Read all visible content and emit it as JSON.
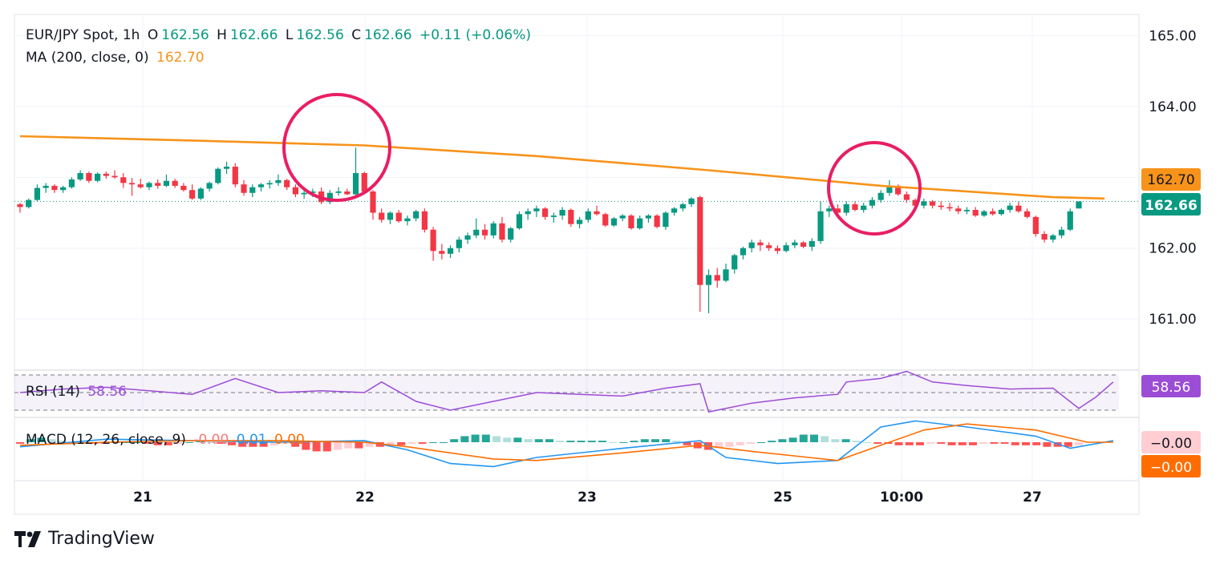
{
  "header": {
    "symbol": "EUR/JPY Spot, 1h",
    "open_label": "O",
    "open": "162.56",
    "high_label": "H",
    "high": "162.66",
    "low_label": "L",
    "low": "162.56",
    "close_label": "C",
    "close": "162.66",
    "change": "+0.11 (+0.06%)",
    "ma_label": "MA (200, close, 0)",
    "ma_value": "162.70"
  },
  "rsi": {
    "label": "RSI (14)",
    "value": "58.56",
    "badge": "58.56"
  },
  "macd": {
    "label": "MACD (12, 26, close, 9)",
    "hist": "-0.00",
    "macd": "0.01",
    "signal": "0.00",
    "badge_top": "−0.00",
    "badge_bottom": "−0.00"
  },
  "brand": {
    "name": "TradingView"
  },
  "colors": {
    "up": "#089981",
    "down": "#f23645",
    "ma": "#f7931a",
    "rsi": "#9c4dd6",
    "macd": "#2196f3",
    "signal": "#ff6d00",
    "circle": "#e91e63"
  },
  "chart_data": {
    "type": "candlestick",
    "title": "EUR/JPY Spot, 1h",
    "ylim": [
      160.3,
      165.3
    ],
    "y_ticks": [
      "165.00",
      "164.00",
      "162.00",
      "161.00"
    ],
    "x_ticks": [
      "21",
      "22",
      "23",
      "25",
      "10:00",
      "27"
    ],
    "price_badges": {
      "ma": "162.70",
      "last": "162.66"
    },
    "candles": [
      [
        162.62,
        162.64,
        162.5,
        162.58
      ],
      [
        162.58,
        162.7,
        162.56,
        162.68
      ],
      [
        162.68,
        162.9,
        162.66,
        162.85
      ],
      [
        162.85,
        162.92,
        162.78,
        162.88
      ],
      [
        162.88,
        162.9,
        162.78,
        162.82
      ],
      [
        162.82,
        162.88,
        162.78,
        162.86
      ],
      [
        162.86,
        163.0,
        162.84,
        162.97
      ],
      [
        162.97,
        163.1,
        162.95,
        163.06
      ],
      [
        163.06,
        163.08,
        162.92,
        162.95
      ],
      [
        162.95,
        163.07,
        162.93,
        163.05
      ],
      [
        163.05,
        163.08,
        162.98,
        163.02
      ],
      [
        163.02,
        163.1,
        162.98,
        163.0
      ],
      [
        163.0,
        163.06,
        162.85,
        162.92
      ],
      [
        162.92,
        162.99,
        162.74,
        162.9
      ],
      [
        162.9,
        162.98,
        162.84,
        162.86
      ],
      [
        162.86,
        162.94,
        162.82,
        162.92
      ],
      [
        162.92,
        162.97,
        162.84,
        162.88
      ],
      [
        162.88,
        163.04,
        162.86,
        162.95
      ],
      [
        162.95,
        162.98,
        162.85,
        162.88
      ],
      [
        162.88,
        162.92,
        162.8,
        162.82
      ],
      [
        162.82,
        162.9,
        162.68,
        162.7
      ],
      [
        162.7,
        162.86,
        162.68,
        162.84
      ],
      [
        162.84,
        162.94,
        162.8,
        162.92
      ],
      [
        162.92,
        163.14,
        162.9,
        163.12
      ],
      [
        163.12,
        163.22,
        163.05,
        163.15
      ],
      [
        163.15,
        163.2,
        162.86,
        162.9
      ],
      [
        162.9,
        162.96,
        162.74,
        162.78
      ],
      [
        162.78,
        162.9,
        162.72,
        162.86
      ],
      [
        162.86,
        162.92,
        162.8,
        162.9
      ],
      [
        162.9,
        162.96,
        162.84,
        162.92
      ],
      [
        162.92,
        163.04,
        162.88,
        162.96
      ],
      [
        162.96,
        162.98,
        162.82,
        162.86
      ],
      [
        162.86,
        162.9,
        162.72,
        162.76
      ],
      [
        162.76,
        162.84,
        162.7,
        162.78
      ],
      [
        162.78,
        162.84,
        162.72,
        162.8
      ],
      [
        162.8,
        162.86,
        162.62,
        162.65
      ],
      [
        162.65,
        162.82,
        162.62,
        162.78
      ],
      [
        162.78,
        162.86,
        162.74,
        162.8
      ],
      [
        162.8,
        162.84,
        162.75,
        162.76
      ],
      [
        162.76,
        163.42,
        162.74,
        163.06
      ],
      [
        163.06,
        163.08,
        162.76,
        162.8
      ],
      [
        162.8,
        162.82,
        162.4,
        162.5
      ],
      [
        162.5,
        162.56,
        162.36,
        162.4
      ],
      [
        162.4,
        162.52,
        162.34,
        162.5
      ],
      [
        162.5,
        162.54,
        162.36,
        162.38
      ],
      [
        162.38,
        162.46,
        162.32,
        162.42
      ],
      [
        162.42,
        162.54,
        162.38,
        162.52
      ],
      [
        162.52,
        162.56,
        162.22,
        162.26
      ],
      [
        162.26,
        162.3,
        161.82,
        161.96
      ],
      [
        161.96,
        162.06,
        161.84,
        161.92
      ],
      [
        161.92,
        162.04,
        161.86,
        162.0
      ],
      [
        162.0,
        162.16,
        161.94,
        162.12
      ],
      [
        162.12,
        162.22,
        162.06,
        162.18
      ],
      [
        162.18,
        162.42,
        162.14,
        162.26
      ],
      [
        162.26,
        162.34,
        162.12,
        162.18
      ],
      [
        162.18,
        162.38,
        162.14,
        162.35
      ],
      [
        162.35,
        162.44,
        162.08,
        162.12
      ],
      [
        162.12,
        162.3,
        162.08,
        162.28
      ],
      [
        162.28,
        162.52,
        162.26,
        162.48
      ],
      [
        162.48,
        162.56,
        162.4,
        162.52
      ],
      [
        162.52,
        162.6,
        162.44,
        162.56
      ],
      [
        162.56,
        162.58,
        162.4,
        162.44
      ],
      [
        162.44,
        162.5,
        162.36,
        162.46
      ],
      [
        162.46,
        162.58,
        162.4,
        162.54
      ],
      [
        162.54,
        162.56,
        162.3,
        162.34
      ],
      [
        162.34,
        162.44,
        162.28,
        162.4
      ],
      [
        162.4,
        162.56,
        162.36,
        162.52
      ],
      [
        162.52,
        162.6,
        162.46,
        162.48
      ],
      [
        162.48,
        162.5,
        162.3,
        162.32
      ],
      [
        162.32,
        162.44,
        162.3,
        162.42
      ],
      [
        162.42,
        162.48,
        162.38,
        162.46
      ],
      [
        162.46,
        162.48,
        162.26,
        162.28
      ],
      [
        162.28,
        162.46,
        162.26,
        162.42
      ],
      [
        162.42,
        162.48,
        162.36,
        162.46
      ],
      [
        162.46,
        162.48,
        162.28,
        162.3
      ],
      [
        162.3,
        162.52,
        162.26,
        162.5
      ],
      [
        162.5,
        162.58,
        162.46,
        162.56
      ],
      [
        162.56,
        162.64,
        162.52,
        162.62
      ],
      [
        162.62,
        162.72,
        162.58,
        162.7
      ],
      [
        162.72,
        162.74,
        161.1,
        161.48
      ],
      [
        161.48,
        161.7,
        161.08,
        161.62
      ],
      [
        161.62,
        161.72,
        161.44,
        161.54
      ],
      [
        161.54,
        161.78,
        161.52,
        161.7
      ],
      [
        161.7,
        161.92,
        161.64,
        161.9
      ],
      [
        161.9,
        162.02,
        161.84,
        162.0
      ],
      [
        162.0,
        162.12,
        161.94,
        162.08
      ],
      [
        162.08,
        162.12,
        161.96,
        162.04
      ],
      [
        162.04,
        162.08,
        161.96,
        162.0
      ],
      [
        162.0,
        162.04,
        161.92,
        161.96
      ],
      [
        161.96,
        162.08,
        161.94,
        162.04
      ],
      [
        162.04,
        162.12,
        162.0,
        162.08
      ],
      [
        162.08,
        162.1,
        162.0,
        162.02
      ],
      [
        162.02,
        162.14,
        161.96,
        162.1
      ],
      [
        162.1,
        162.66,
        162.06,
        162.52
      ],
      [
        162.52,
        162.6,
        162.44,
        162.56
      ],
      [
        162.56,
        162.62,
        162.48,
        162.5
      ],
      [
        162.5,
        162.66,
        162.46,
        162.62
      ],
      [
        162.62,
        162.66,
        162.52,
        162.54
      ],
      [
        162.54,
        162.64,
        162.5,
        162.6
      ],
      [
        162.6,
        162.72,
        162.56,
        162.68
      ],
      [
        162.68,
        162.82,
        162.64,
        162.78
      ],
      [
        162.78,
        162.96,
        162.74,
        162.88
      ],
      [
        162.88,
        162.9,
        162.74,
        162.76
      ],
      [
        162.76,
        162.8,
        162.64,
        162.68
      ],
      [
        162.68,
        162.7,
        162.56,
        162.6
      ],
      [
        162.6,
        162.7,
        162.56,
        162.66
      ],
      [
        162.66,
        162.68,
        162.56,
        162.6
      ],
      [
        162.6,
        162.66,
        162.54,
        162.58
      ],
      [
        162.58,
        162.64,
        162.52,
        162.56
      ],
      [
        162.56,
        162.6,
        162.48,
        162.52
      ],
      [
        162.52,
        162.58,
        162.48,
        162.54
      ],
      [
        162.54,
        162.58,
        162.44,
        162.46
      ],
      [
        162.46,
        162.54,
        162.44,
        162.52
      ],
      [
        162.52,
        162.56,
        162.46,
        162.48
      ],
      [
        162.48,
        162.56,
        162.46,
        162.54
      ],
      [
        162.54,
        162.64,
        162.5,
        162.6
      ],
      [
        162.6,
        162.66,
        162.5,
        162.52
      ],
      [
        162.52,
        162.56,
        162.42,
        162.44
      ],
      [
        162.44,
        162.46,
        162.16,
        162.2
      ],
      [
        162.2,
        162.24,
        162.08,
        162.12
      ],
      [
        162.12,
        162.2,
        162.08,
        162.18
      ],
      [
        162.18,
        162.3,
        162.14,
        162.26
      ],
      [
        162.26,
        162.56,
        162.24,
        162.52
      ],
      [
        162.56,
        162.66,
        162.56,
        162.66
      ]
    ],
    "ma_points": [
      [
        0,
        163.58
      ],
      [
        20,
        163.52
      ],
      [
        40,
        163.45
      ],
      [
        60,
        163.3
      ],
      [
        80,
        163.1
      ],
      [
        100,
        162.88
      ],
      [
        120,
        162.72
      ],
      [
        126,
        162.7
      ]
    ],
    "rsi_points": [
      [
        0,
        50
      ],
      [
        5,
        54
      ],
      [
        10,
        56
      ],
      [
        15,
        52
      ],
      [
        20,
        48
      ],
      [
        25,
        66
      ],
      [
        30,
        50
      ],
      [
        35,
        52
      ],
      [
        40,
        50
      ],
      [
        42,
        62
      ],
      [
        46,
        40
      ],
      [
        50,
        30
      ],
      [
        55,
        40
      ],
      [
        60,
        50
      ],
      [
        65,
        48
      ],
      [
        70,
        46
      ],
      [
        75,
        55
      ],
      [
        79,
        60
      ],
      [
        80,
        28
      ],
      [
        85,
        38
      ],
      [
        90,
        44
      ],
      [
        95,
        48
      ],
      [
        96,
        62
      ],
      [
        100,
        66
      ],
      [
        103,
        74
      ],
      [
        106,
        62
      ],
      [
        110,
        58
      ],
      [
        115,
        54
      ],
      [
        120,
        55
      ],
      [
        123,
        32
      ],
      [
        125,
        45
      ],
      [
        127,
        62
      ]
    ],
    "macd_points": [
      [
        0,
        -0.03
      ],
      [
        10,
        0.02
      ],
      [
        20,
        0.01
      ],
      [
        30,
        0.0
      ],
      [
        40,
        0.01
      ],
      [
        45,
        -0.05
      ],
      [
        50,
        -0.14
      ],
      [
        55,
        -0.16
      ],
      [
        60,
        -0.1
      ],
      [
        70,
        -0.04
      ],
      [
        79,
        0.01
      ],
      [
        82,
        -0.1
      ],
      [
        88,
        -0.14
      ],
      [
        95,
        -0.12
      ],
      [
        100,
        0.1
      ],
      [
        104,
        0.14
      ],
      [
        110,
        0.1
      ],
      [
        118,
        0.04
      ],
      [
        122,
        -0.04
      ],
      [
        127,
        0.01
      ]
    ],
    "signal_points": [
      [
        0,
        -0.02
      ],
      [
        10,
        0.0
      ],
      [
        20,
        0.01
      ],
      [
        30,
        0.01
      ],
      [
        40,
        0.0
      ],
      [
        45,
        -0.03
      ],
      [
        55,
        -0.11
      ],
      [
        60,
        -0.12
      ],
      [
        70,
        -0.07
      ],
      [
        79,
        -0.02
      ],
      [
        85,
        -0.06
      ],
      [
        95,
        -0.12
      ],
      [
        100,
        -0.02
      ],
      [
        105,
        0.08
      ],
      [
        110,
        0.12
      ],
      [
        118,
        0.08
      ],
      [
        124,
        0.0
      ],
      [
        127,
        0.0
      ]
    ],
    "hist": [
      -0.01,
      0.02,
      0.03,
      0.02,
      0.01,
      0.0,
      0.0,
      -0.01,
      -0.01,
      0.0,
      0.0,
      0.0,
      -0.01,
      -0.02,
      -0.02,
      -0.01,
      0.0,
      0.01,
      0.0,
      -0.01,
      -0.02,
      -0.03,
      -0.03,
      -0.03,
      -0.02,
      -0.01,
      -0.03,
      -0.05,
      -0.06,
      -0.06,
      -0.05,
      -0.04,
      -0.04,
      -0.03,
      -0.03,
      -0.02,
      -0.02,
      -0.01,
      -0.01,
      0.0,
      0.0,
      0.02,
      0.04,
      0.05,
      0.05,
      0.04,
      0.03,
      0.03,
      0.02,
      0.02,
      0.02,
      0.01,
      0.01,
      0.01,
      0.01,
      0.01,
      0.0,
      0.0,
      0.01,
      0.02,
      0.02,
      0.02,
      0.01,
      -0.02,
      -0.04,
      -0.05,
      -0.04,
      -0.03,
      -0.02,
      -0.01,
      0.0,
      0.01,
      0.02,
      0.03,
      0.05,
      0.05,
      0.04,
      0.02,
      0.02,
      0.01,
      0.0,
      -0.01,
      -0.01,
      -0.02,
      -0.02,
      -0.02,
      -0.01,
      -0.01,
      -0.02,
      -0.02,
      -0.02,
      -0.01,
      -0.01,
      -0.01,
      -0.02,
      -0.02,
      -0.02,
      -0.03,
      -0.03,
      -0.03,
      -0.02
    ]
  }
}
